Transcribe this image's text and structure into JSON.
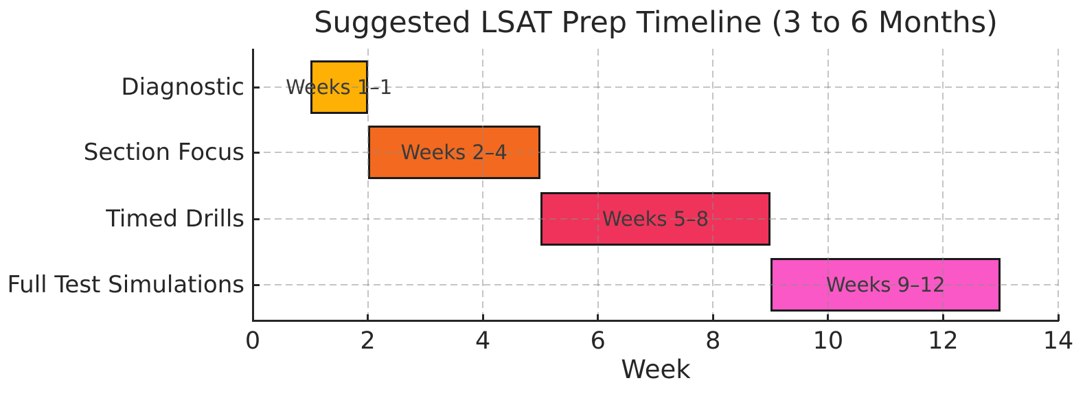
{
  "chart_data": {
    "type": "bar",
    "subtype": "horizontal-gantt",
    "title": "Suggested LSAT Prep Timeline (3 to 6 Months)",
    "xlabel": "Week",
    "ylabel": "",
    "xlim": [
      0,
      14
    ],
    "x_ticks": [
      0,
      2,
      4,
      6,
      8,
      10,
      12,
      14
    ],
    "grid": true,
    "grid_style": "dashed",
    "legend": "none",
    "categories": [
      "Diagnostic",
      "Section Focus",
      "Timed Drills",
      "Full Test Simulations"
    ],
    "series": [
      {
        "name": "Diagnostic",
        "start": 1,
        "end": 2,
        "label": "Weeks 1–1",
        "color": "#FFB005"
      },
      {
        "name": "Section Focus",
        "start": 2,
        "end": 5,
        "label": "Weeks 2–4",
        "color": "#F3691F"
      },
      {
        "name": "Timed Drills",
        "start": 5,
        "end": 9,
        "label": "Weeks 5–8",
        "color": "#F0335A"
      },
      {
        "name": "Full Test Simulations",
        "start": 9,
        "end": 13,
        "label": "Weeks 9–12",
        "color": "#F958C6"
      }
    ],
    "colors": {
      "background": "#ffffff",
      "axis_text": "#262626",
      "bar_label_text": "#3a3a3a",
      "spine": "#262626",
      "bar_edge": "#1a1a1a",
      "gridline": "#c9c9c9"
    }
  }
}
